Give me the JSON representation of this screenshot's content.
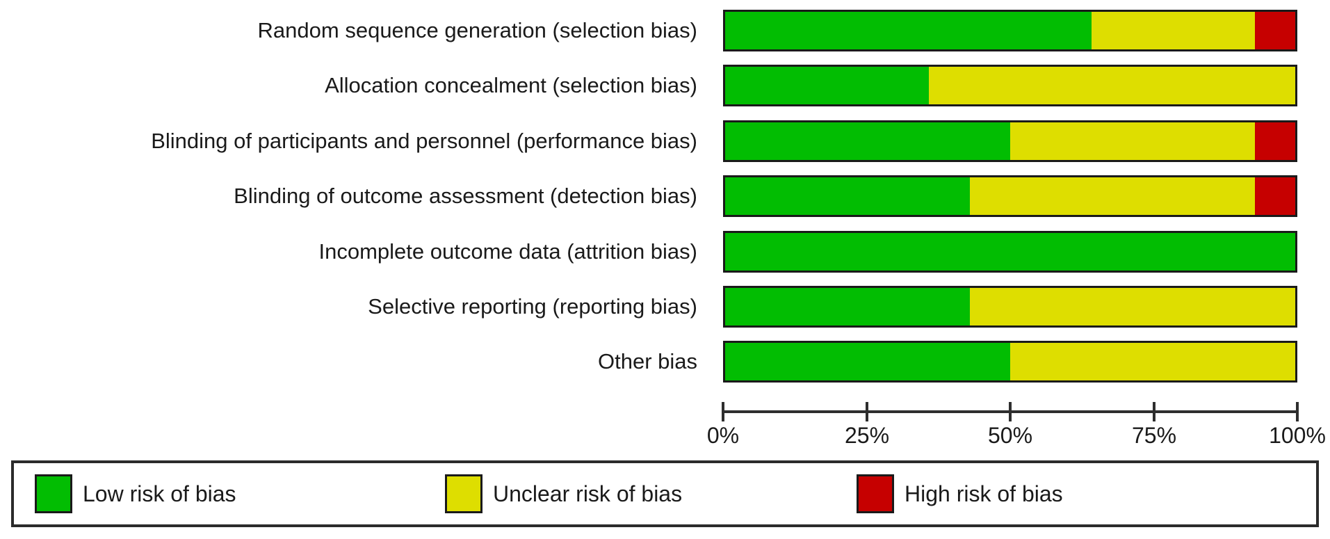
{
  "chart_data": {
    "type": "bar",
    "orientation": "horizontal",
    "stacked": true,
    "title": "",
    "xlabel": "",
    "ylabel": "",
    "grid": false,
    "xlim": [
      0,
      100
    ],
    "x_ticks": [
      "0%",
      "25%",
      "50%",
      "75%",
      "100%"
    ],
    "legend_position": "bottom",
    "categories": [
      "Random sequence generation (selection bias)",
      "Allocation concealment (selection bias)",
      "Blinding of participants and personnel (performance bias)",
      "Blinding of outcome assessment (detection bias)",
      "Incomplete outcome data (attrition bias)",
      "Selective reporting (reporting bias)",
      "Other bias"
    ],
    "series": [
      {
        "name": "Low risk of bias",
        "color": "#02bd02",
        "values": [
          64.3,
          35.7,
          50.0,
          42.9,
          100.0,
          42.9,
          50.0
        ]
      },
      {
        "name": "Unclear risk of bias",
        "color": "#dede00",
        "values": [
          28.6,
          64.3,
          42.9,
          50.0,
          0.0,
          57.1,
          50.0
        ]
      },
      {
        "name": "High risk of bias",
        "color": "#c60000",
        "values": [
          7.1,
          0.0,
          7.1,
          7.1,
          0.0,
          0.0,
          0.0
        ]
      }
    ]
  },
  "legend": {
    "items": [
      {
        "label": "Low risk of bias",
        "color": "#02bd02"
      },
      {
        "label": "Unclear risk of bias",
        "color": "#dede00"
      },
      {
        "label": "High risk of bias",
        "color": "#c60000"
      }
    ]
  },
  "colors": {
    "bar_border": "#1a1a1a",
    "axis": "#2e2e2e",
    "text": "#1a1a1a",
    "background": "#ffffff"
  }
}
